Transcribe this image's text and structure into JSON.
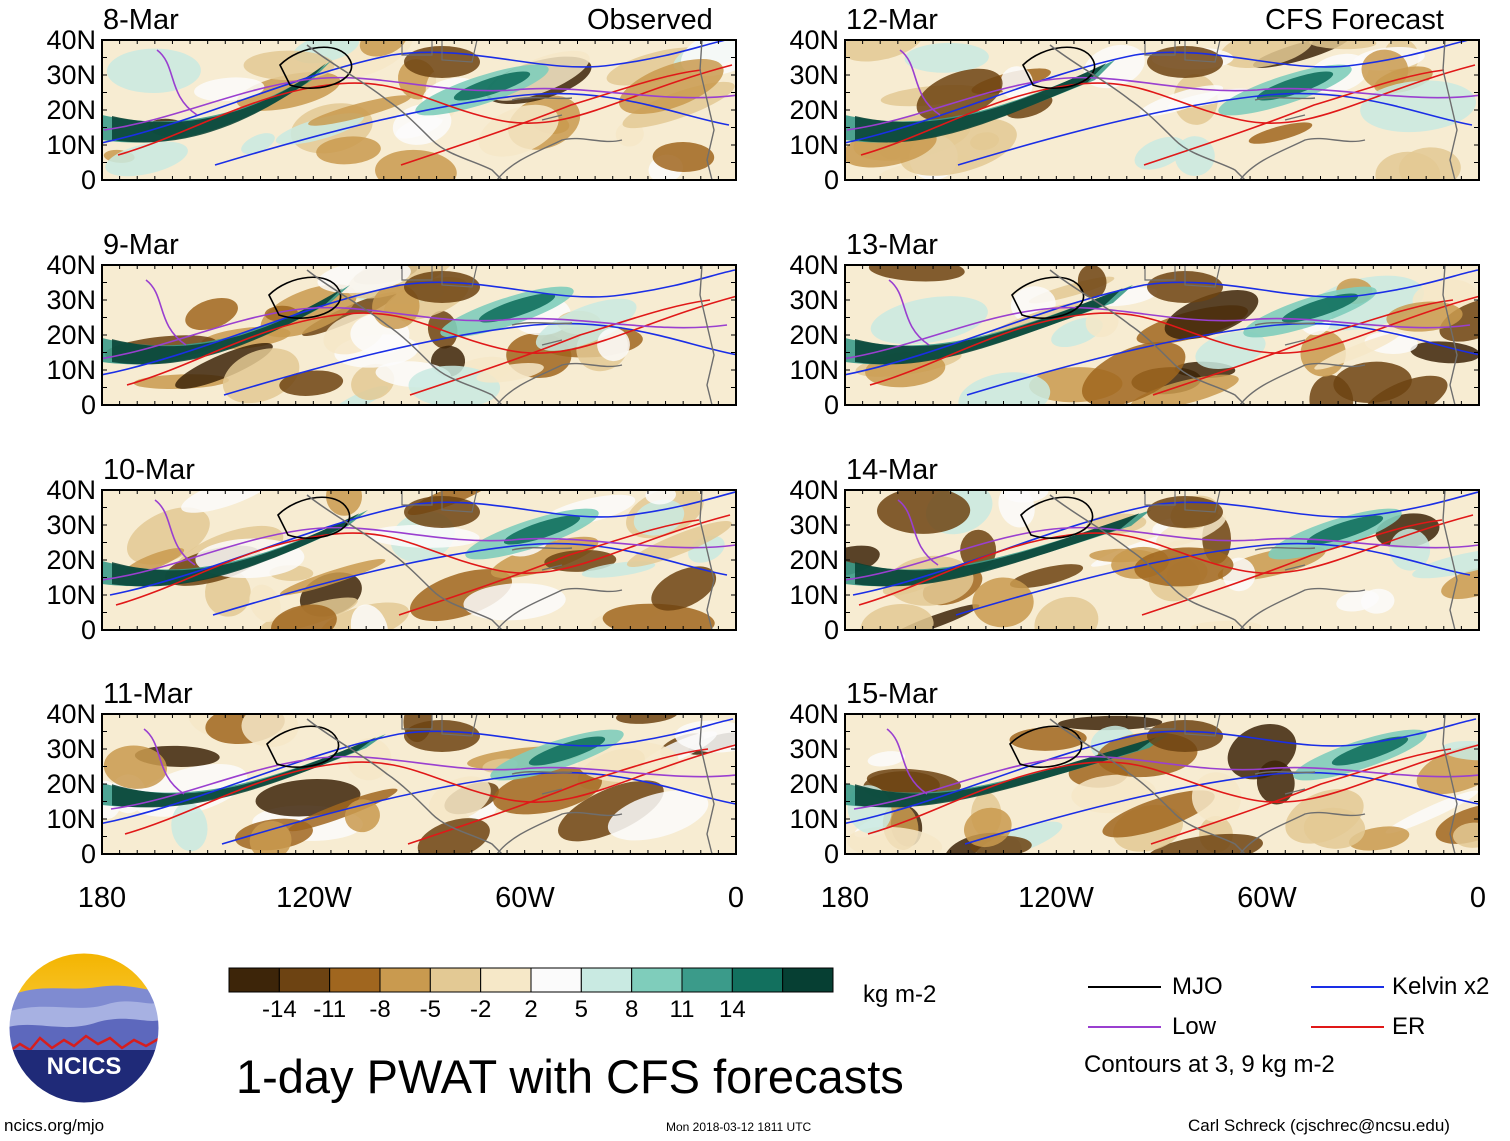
{
  "title": "1-day PWAT with CFS forecasts",
  "footer": {
    "left": "ncics.org/mjo",
    "center": "Mon 2018-03-12 1811 UTC",
    "right": "Carl Schreck (cjschrec@ncsu.edu)"
  },
  "logo": {
    "text": "NCICS"
  },
  "column_headers": {
    "left": "Observed",
    "right": "CFS Forecast"
  },
  "panels_left": [
    {
      "date": "8-Mar"
    },
    {
      "date": "9-Mar"
    },
    {
      "date": "10-Mar"
    },
    {
      "date": "11-Mar"
    }
  ],
  "panels_right": [
    {
      "date": "12-Mar"
    },
    {
      "date": "13-Mar"
    },
    {
      "date": "14-Mar"
    },
    {
      "date": "15-Mar"
    }
  ],
  "lat_ticks": [
    "40N",
    "30N",
    "20N",
    "10N",
    "0"
  ],
  "lon_ticks": [
    "180",
    "120W",
    "60W",
    "0"
  ],
  "colorbar": {
    "unit": "kg m-2",
    "labels": [
      "-14",
      "-11",
      "-8",
      "-5",
      "-2",
      "2",
      "5",
      "8",
      "11",
      "14"
    ],
    "colors": [
      "#3d2509",
      "#6d4312",
      "#a0661f",
      "#c99a4f",
      "#e3c994",
      "#f6e8c8",
      "#fbfbfb",
      "#c9eae2",
      "#7fcdbb",
      "#3b9b8a",
      "#12705e",
      "#063f33"
    ]
  },
  "legend": {
    "items": [
      {
        "label": "MJO",
        "color": "#000000"
      },
      {
        "label": "Kelvin x2",
        "color": "#1a2ee6"
      },
      {
        "label": "Low",
        "color": "#9a3fd0"
      },
      {
        "label": "ER",
        "color": "#e01818"
      }
    ],
    "note": "Contours at 3, 9 kg m-2"
  }
}
